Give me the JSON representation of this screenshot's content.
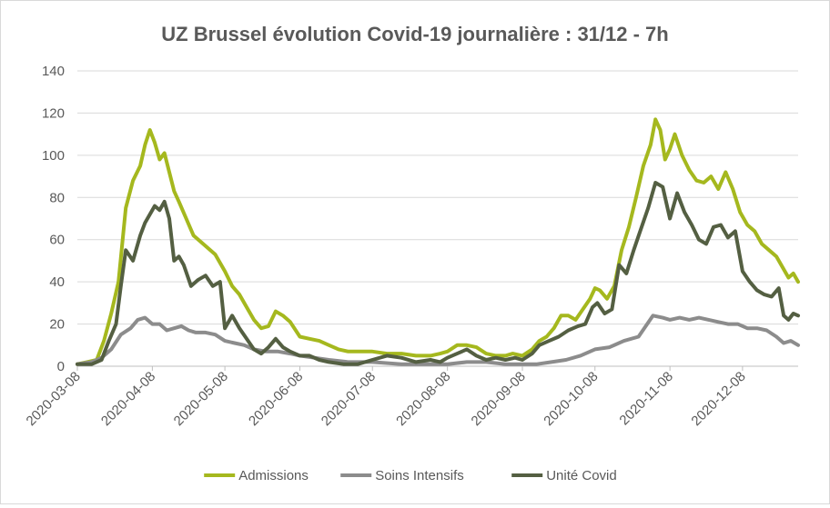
{
  "chart_data": {
    "type": "line",
    "title": "UZ Brussel évolution Covid-19 journalière : 31/12 - 7h",
    "xlabel": "",
    "ylabel": "",
    "x_range": [
      "2020-03-08",
      "2020-12-31"
    ],
    "ylim": [
      0,
      140
    ],
    "y_ticks": [
      0,
      20,
      40,
      60,
      80,
      100,
      120,
      140
    ],
    "x_ticks": [
      "2020-03-08",
      "2020-04-08",
      "2020-05-08",
      "2020-06-08",
      "2020-07-08",
      "2020-08-08",
      "2020-09-08",
      "2020-10-08",
      "2020-11-08",
      "2020-12-08"
    ],
    "grid": "horizontal",
    "legend_position": "bottom",
    "series": [
      {
        "name": "Admissions",
        "color": "#a5b81e",
        "points": [
          [
            "2020-03-08",
            1
          ],
          [
            "2020-03-12",
            2
          ],
          [
            "2020-03-16",
            3
          ],
          [
            "2020-03-19",
            12
          ],
          [
            "2020-03-22",
            25
          ],
          [
            "2020-03-25",
            40
          ],
          [
            "2020-03-28",
            75
          ],
          [
            "2020-03-31",
            88
          ],
          [
            "2020-04-03",
            95
          ],
          [
            "2020-04-05",
            105
          ],
          [
            "2020-04-07",
            112
          ],
          [
            "2020-04-09",
            106
          ],
          [
            "2020-04-11",
            98
          ],
          [
            "2020-04-13",
            101
          ],
          [
            "2020-04-15",
            92
          ],
          [
            "2020-04-17",
            83
          ],
          [
            "2020-04-19",
            78
          ],
          [
            "2020-04-22",
            70
          ],
          [
            "2020-04-25",
            62
          ],
          [
            "2020-04-28",
            59
          ],
          [
            "2020-05-01",
            56
          ],
          [
            "2020-05-04",
            53
          ],
          [
            "2020-05-08",
            45
          ],
          [
            "2020-05-11",
            38
          ],
          [
            "2020-05-14",
            34
          ],
          [
            "2020-05-17",
            28
          ],
          [
            "2020-05-20",
            22
          ],
          [
            "2020-05-23",
            18
          ],
          [
            "2020-05-26",
            19
          ],
          [
            "2020-05-29",
            26
          ],
          [
            "2020-06-01",
            24
          ],
          [
            "2020-06-04",
            21
          ],
          [
            "2020-06-08",
            14
          ],
          [
            "2020-06-12",
            13
          ],
          [
            "2020-06-16",
            12
          ],
          [
            "2020-06-20",
            10
          ],
          [
            "2020-06-24",
            8
          ],
          [
            "2020-06-28",
            7
          ],
          [
            "2020-07-02",
            7
          ],
          [
            "2020-07-08",
            7
          ],
          [
            "2020-07-14",
            6
          ],
          [
            "2020-07-20",
            6
          ],
          [
            "2020-07-26",
            5
          ],
          [
            "2020-08-01",
            5
          ],
          [
            "2020-08-05",
            6
          ],
          [
            "2020-08-08",
            7
          ],
          [
            "2020-08-12",
            10
          ],
          [
            "2020-08-16",
            10
          ],
          [
            "2020-08-20",
            9
          ],
          [
            "2020-08-24",
            6
          ],
          [
            "2020-08-28",
            5
          ],
          [
            "2020-09-01",
            5
          ],
          [
            "2020-09-04",
            6
          ],
          [
            "2020-09-08",
            5
          ],
          [
            "2020-09-12",
            8
          ],
          [
            "2020-09-15",
            12
          ],
          [
            "2020-09-18",
            14
          ],
          [
            "2020-09-21",
            18
          ],
          [
            "2020-09-24",
            24
          ],
          [
            "2020-09-27",
            24
          ],
          [
            "2020-09-30",
            22
          ],
          [
            "2020-10-03",
            27
          ],
          [
            "2020-10-06",
            32
          ],
          [
            "2020-10-08",
            37
          ],
          [
            "2020-10-10",
            36
          ],
          [
            "2020-10-13",
            32
          ],
          [
            "2020-10-16",
            38
          ],
          [
            "2020-10-19",
            55
          ],
          [
            "2020-10-22",
            66
          ],
          [
            "2020-10-25",
            80
          ],
          [
            "2020-10-28",
            95
          ],
          [
            "2020-10-31",
            105
          ],
          [
            "2020-11-02",
            117
          ],
          [
            "2020-11-04",
            112
          ],
          [
            "2020-11-06",
            98
          ],
          [
            "2020-11-08",
            103
          ],
          [
            "2020-11-10",
            110
          ],
          [
            "2020-11-13",
            100
          ],
          [
            "2020-11-16",
            93
          ],
          [
            "2020-11-19",
            88
          ],
          [
            "2020-11-22",
            87
          ],
          [
            "2020-11-25",
            90
          ],
          [
            "2020-11-28",
            84
          ],
          [
            "2020-12-01",
            92
          ],
          [
            "2020-12-04",
            84
          ],
          [
            "2020-12-07",
            73
          ],
          [
            "2020-12-10",
            67
          ],
          [
            "2020-12-13",
            64
          ],
          [
            "2020-12-16",
            58
          ],
          [
            "2020-12-19",
            55
          ],
          [
            "2020-12-22",
            52
          ],
          [
            "2020-12-25",
            46
          ],
          [
            "2020-12-27",
            42
          ],
          [
            "2020-12-29",
            44
          ],
          [
            "2020-12-31",
            40
          ]
        ]
      },
      {
        "name": "Soins Intensifs",
        "color": "#8c8c8c",
        "points": [
          [
            "2020-03-08",
            1
          ],
          [
            "2020-03-14",
            2
          ],
          [
            "2020-03-18",
            4
          ],
          [
            "2020-03-22",
            8
          ],
          [
            "2020-03-26",
            15
          ],
          [
            "2020-03-30",
            18
          ],
          [
            "2020-04-02",
            22
          ],
          [
            "2020-04-05",
            23
          ],
          [
            "2020-04-08",
            20
          ],
          [
            "2020-04-11",
            20
          ],
          [
            "2020-04-14",
            17
          ],
          [
            "2020-04-17",
            18
          ],
          [
            "2020-04-20",
            19
          ],
          [
            "2020-04-23",
            17
          ],
          [
            "2020-04-26",
            16
          ],
          [
            "2020-04-30",
            16
          ],
          [
            "2020-05-04",
            15
          ],
          [
            "2020-05-08",
            12
          ],
          [
            "2020-05-12",
            11
          ],
          [
            "2020-05-16",
            10
          ],
          [
            "2020-05-20",
            8
          ],
          [
            "2020-05-25",
            7
          ],
          [
            "2020-05-30",
            7
          ],
          [
            "2020-06-04",
            6
          ],
          [
            "2020-06-08",
            5
          ],
          [
            "2020-06-14",
            4
          ],
          [
            "2020-06-20",
            3
          ],
          [
            "2020-06-28",
            2
          ],
          [
            "2020-07-08",
            2
          ],
          [
            "2020-07-20",
            1
          ],
          [
            "2020-08-01",
            1
          ],
          [
            "2020-08-08",
            1
          ],
          [
            "2020-08-16",
            2
          ],
          [
            "2020-08-24",
            2
          ],
          [
            "2020-09-01",
            1
          ],
          [
            "2020-09-08",
            1
          ],
          [
            "2020-09-14",
            1
          ],
          [
            "2020-09-20",
            2
          ],
          [
            "2020-09-26",
            3
          ],
          [
            "2020-10-02",
            5
          ],
          [
            "2020-10-08",
            8
          ],
          [
            "2020-10-14",
            9
          ],
          [
            "2020-10-20",
            12
          ],
          [
            "2020-10-26",
            14
          ],
          [
            "2020-11-01",
            24
          ],
          [
            "2020-11-05",
            23
          ],
          [
            "2020-11-08",
            22
          ],
          [
            "2020-11-12",
            23
          ],
          [
            "2020-11-16",
            22
          ],
          [
            "2020-11-20",
            23
          ],
          [
            "2020-11-24",
            22
          ],
          [
            "2020-11-28",
            21
          ],
          [
            "2020-12-02",
            20
          ],
          [
            "2020-12-06",
            20
          ],
          [
            "2020-12-10",
            18
          ],
          [
            "2020-12-14",
            18
          ],
          [
            "2020-12-18",
            17
          ],
          [
            "2020-12-22",
            14
          ],
          [
            "2020-12-25",
            11
          ],
          [
            "2020-12-28",
            12
          ],
          [
            "2020-12-31",
            10
          ]
        ]
      },
      {
        "name": "Unité Covid",
        "color": "#545f42",
        "points": [
          [
            "2020-03-08",
            1
          ],
          [
            "2020-03-14",
            1
          ],
          [
            "2020-03-18",
            3
          ],
          [
            "2020-03-21",
            12
          ],
          [
            "2020-03-24",
            20
          ],
          [
            "2020-03-26",
            38
          ],
          [
            "2020-03-28",
            55
          ],
          [
            "2020-03-31",
            50
          ],
          [
            "2020-04-03",
            62
          ],
          [
            "2020-04-05",
            68
          ],
          [
            "2020-04-07",
            72
          ],
          [
            "2020-04-09",
            76
          ],
          [
            "2020-04-11",
            74
          ],
          [
            "2020-04-13",
            78
          ],
          [
            "2020-04-15",
            70
          ],
          [
            "2020-04-17",
            50
          ],
          [
            "2020-04-19",
            52
          ],
          [
            "2020-04-21",
            48
          ],
          [
            "2020-04-24",
            38
          ],
          [
            "2020-04-27",
            41
          ],
          [
            "2020-04-30",
            43
          ],
          [
            "2020-05-03",
            38
          ],
          [
            "2020-05-06",
            40
          ],
          [
            "2020-05-08",
            18
          ],
          [
            "2020-05-11",
            24
          ],
          [
            "2020-05-14",
            18
          ],
          [
            "2020-05-17",
            13
          ],
          [
            "2020-05-20",
            8
          ],
          [
            "2020-05-23",
            6
          ],
          [
            "2020-05-26",
            9
          ],
          [
            "2020-05-29",
            13
          ],
          [
            "2020-06-01",
            9
          ],
          [
            "2020-06-04",
            7
          ],
          [
            "2020-06-08",
            5
          ],
          [
            "2020-06-12",
            5
          ],
          [
            "2020-06-16",
            3
          ],
          [
            "2020-06-20",
            2
          ],
          [
            "2020-06-26",
            1
          ],
          [
            "2020-07-02",
            1
          ],
          [
            "2020-07-08",
            3
          ],
          [
            "2020-07-14",
            5
          ],
          [
            "2020-07-20",
            4
          ],
          [
            "2020-07-26",
            2
          ],
          [
            "2020-08-01",
            3
          ],
          [
            "2020-08-05",
            2
          ],
          [
            "2020-08-08",
            4
          ],
          [
            "2020-08-12",
            6
          ],
          [
            "2020-08-16",
            8
          ],
          [
            "2020-08-20",
            5
          ],
          [
            "2020-08-24",
            3
          ],
          [
            "2020-08-28",
            4
          ],
          [
            "2020-09-01",
            3
          ],
          [
            "2020-09-05",
            4
          ],
          [
            "2020-09-08",
            3
          ],
          [
            "2020-09-12",
            6
          ],
          [
            "2020-09-15",
            10
          ],
          [
            "2020-09-19",
            12
          ],
          [
            "2020-09-23",
            14
          ],
          [
            "2020-09-27",
            17
          ],
          [
            "2020-10-01",
            19
          ],
          [
            "2020-10-04",
            20
          ],
          [
            "2020-10-07",
            28
          ],
          [
            "2020-10-09",
            30
          ],
          [
            "2020-10-12",
            25
          ],
          [
            "2020-10-15",
            27
          ],
          [
            "2020-10-18",
            48
          ],
          [
            "2020-10-21",
            44
          ],
          [
            "2020-10-24",
            55
          ],
          [
            "2020-10-27",
            65
          ],
          [
            "2020-10-30",
            75
          ],
          [
            "2020-11-02",
            87
          ],
          [
            "2020-11-05",
            85
          ],
          [
            "2020-11-08",
            70
          ],
          [
            "2020-11-11",
            82
          ],
          [
            "2020-11-14",
            73
          ],
          [
            "2020-11-17",
            67
          ],
          [
            "2020-11-20",
            60
          ],
          [
            "2020-11-23",
            58
          ],
          [
            "2020-11-26",
            66
          ],
          [
            "2020-11-29",
            67
          ],
          [
            "2020-12-02",
            61
          ],
          [
            "2020-12-05",
            64
          ],
          [
            "2020-12-08",
            45
          ],
          [
            "2020-12-11",
            40
          ],
          [
            "2020-12-14",
            36
          ],
          [
            "2020-12-17",
            34
          ],
          [
            "2020-12-20",
            33
          ],
          [
            "2020-12-23",
            37
          ],
          [
            "2020-12-25",
            24
          ],
          [
            "2020-12-27",
            22
          ],
          [
            "2020-12-29",
            25
          ],
          [
            "2020-12-31",
            24
          ]
        ]
      }
    ]
  }
}
